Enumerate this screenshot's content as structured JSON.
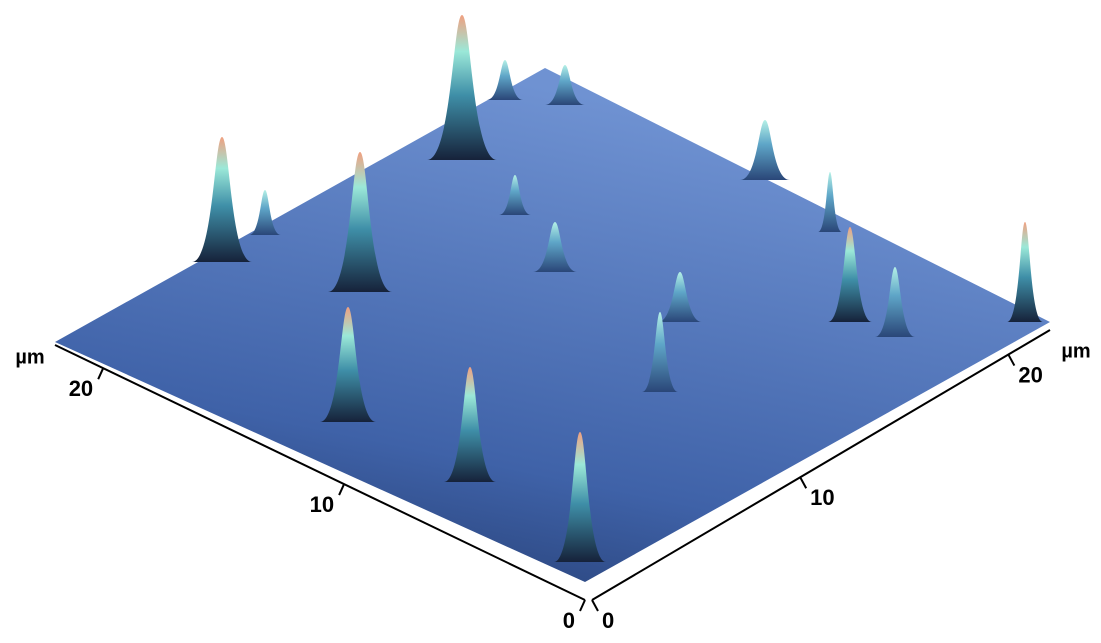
{
  "chart_data": {
    "type": "surface",
    "x_label": "µm",
    "y_label": "µm",
    "xlim": [
      0,
      22
    ],
    "xticks": [
      0,
      10,
      20
    ],
    "ylim": [
      0,
      22
    ],
    "yticks": [
      0,
      10,
      20
    ]
  }
}
